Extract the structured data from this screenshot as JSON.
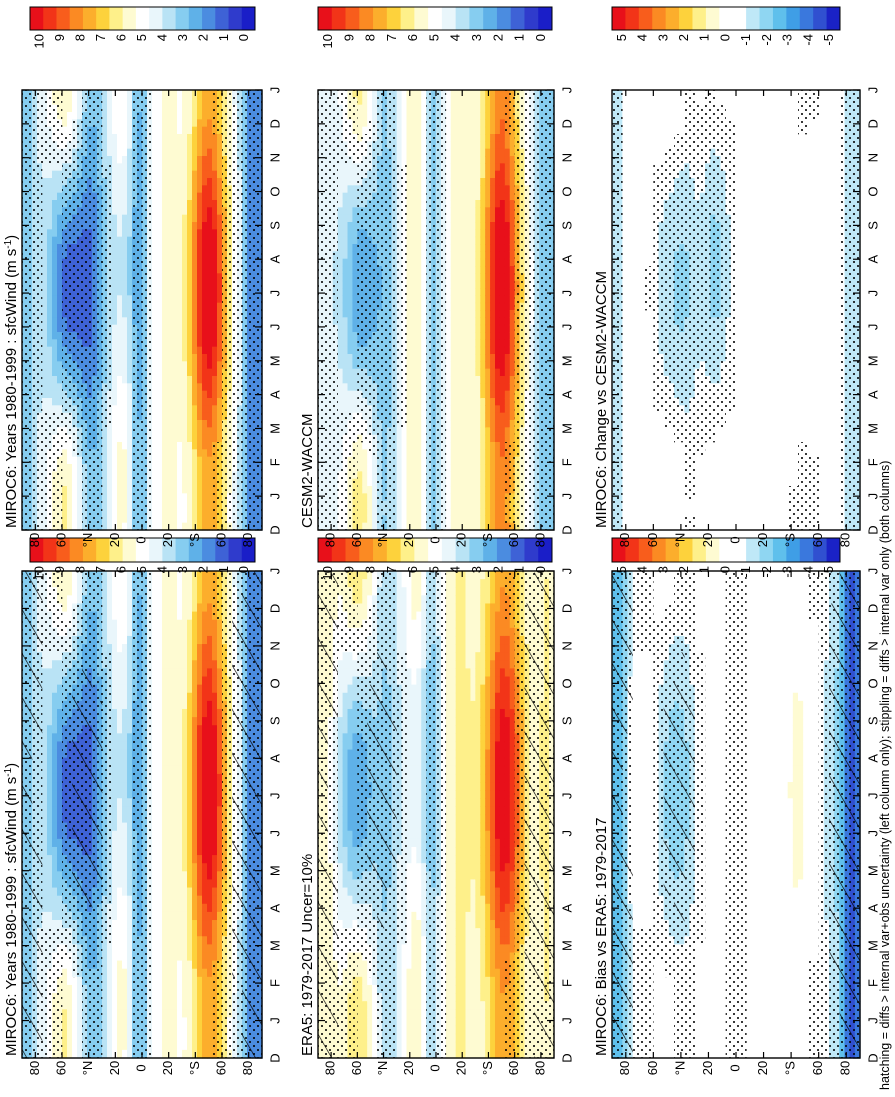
{
  "footer_note": "hatching = diffs > internal var+obs uncertainty (left column only); stippling = diffs > internal var only (both columns)",
  "colors": {
    "abs_scale": [
      "#e8101a",
      "#f23418",
      "#f85d1c",
      "#fb8a23",
      "#fcae2c",
      "#fdd23c",
      "#fef08a",
      "#fefbd2",
      "#ffffff",
      "#e9f6fb",
      "#b9e3f5",
      "#86cdf0",
      "#5fb1e8",
      "#4b8ce0",
      "#3e62d6",
      "#2f3bcc",
      "#1a1ec8"
    ],
    "diff_scale": [
      "#e8101a",
      "#f23418",
      "#f85d1c",
      "#fb8a23",
      "#fcae2c",
      "#fdd23c",
      "#fef08a",
      "#fefbd2",
      "#ffffff",
      "#ffffff",
      "#bfe8f7",
      "#8fd6f2",
      "#5fc0ec",
      "#3f9ee6",
      "#3a78dd",
      "#3050d0",
      "#1a22c6"
    ]
  },
  "chart_data": [
    {
      "type": "heatmap",
      "title": "MIROC6: Years 1980-1999 : sfcWind (m s",
      "title_sup": "-1",
      "title_end": ")",
      "xlabel": "",
      "x_ticks": [
        "D",
        "J",
        "F",
        "M",
        "A",
        "M",
        "J",
        "J",
        "A",
        "S",
        "O",
        "N",
        "D",
        "J"
      ],
      "y_ticks": [
        "80",
        "60",
        "°N",
        "20",
        "0",
        "20",
        "°S",
        "60",
        "80"
      ],
      "ylim": [
        -90,
        90
      ],
      "colorbar_ticks": [
        "10",
        "9",
        "8",
        "7",
        "6",
        "5",
        "4",
        "3",
        "2",
        "1",
        "0"
      ],
      "scale": "abs",
      "field": "model",
      "hatching": true,
      "stippling": true
    },
    {
      "type": "heatmap",
      "title": "MIROC6: Years 1980-1999 : sfcWind (m s",
      "title_sup": "-1",
      "title_end": ")",
      "x_ticks": [
        "D",
        "J",
        "F",
        "M",
        "A",
        "M",
        "J",
        "J",
        "A",
        "S",
        "O",
        "N",
        "D",
        "J"
      ],
      "y_ticks": [
        "80",
        "60",
        "°N",
        "20",
        "0",
        "20",
        "°S",
        "60",
        "80"
      ],
      "ylim": [
        -90,
        90
      ],
      "colorbar_ticks": [
        "10",
        "9",
        "8",
        "7",
        "6",
        "5",
        "4",
        "3",
        "2",
        "1",
        "0"
      ],
      "scale": "abs",
      "field": "model",
      "hatching": false,
      "stippling": true
    },
    {
      "type": "heatmap",
      "title": "ERA5: 1979-2017 Uncer=10%",
      "x_ticks": [
        "D",
        "J",
        "F",
        "M",
        "A",
        "M",
        "J",
        "J",
        "A",
        "S",
        "O",
        "N",
        "D",
        "J"
      ],
      "y_ticks": [
        "80",
        "60",
        "°N",
        "20",
        "0",
        "20",
        "°S",
        "60",
        "80"
      ],
      "ylim": [
        -90,
        90
      ],
      "colorbar_ticks": [
        "10",
        "9",
        "8",
        "7",
        "6",
        "5",
        "4",
        "3",
        "2",
        "1",
        "0"
      ],
      "scale": "abs",
      "field": "obs",
      "hatching": true,
      "stippling": true
    },
    {
      "type": "heatmap",
      "title": "CESM2-WACCM",
      "x_ticks": [
        "D",
        "J",
        "F",
        "M",
        "A",
        "M",
        "J",
        "J",
        "A",
        "S",
        "O",
        "N",
        "D",
        "J"
      ],
      "y_ticks": [
        "80",
        "60",
        "°N",
        "20",
        "0",
        "20",
        "°S",
        "60",
        "80"
      ],
      "ylim": [
        -90,
        90
      ],
      "colorbar_ticks": [
        "10",
        "9",
        "8",
        "7",
        "6",
        "5",
        "4",
        "3",
        "2",
        "1",
        "0"
      ],
      "scale": "abs",
      "field": "cesm",
      "hatching": false,
      "stippling": true
    },
    {
      "type": "heatmap",
      "title": "MIROC6: Bias vs ERA5: 1979-2017",
      "x_ticks": [
        "D",
        "J",
        "F",
        "M",
        "A",
        "M",
        "J",
        "J",
        "A",
        "S",
        "O",
        "N",
        "D",
        "J"
      ],
      "y_ticks": [
        "80",
        "60",
        "°N",
        "20",
        "0",
        "20",
        "°S",
        "60",
        "80"
      ],
      "ylim": [
        -90,
        90
      ],
      "colorbar_ticks": [
        "5",
        "4",
        "3",
        "2",
        "1",
        "0",
        "-1",
        "-2",
        "-3",
        "-4",
        "-5"
      ],
      "scale": "diff",
      "field": "bias",
      "hatching": true,
      "stippling": true
    },
    {
      "type": "heatmap",
      "title": "MIROC6: Change vs CESM2-WACCM",
      "x_ticks": [
        "D",
        "J",
        "F",
        "M",
        "A",
        "M",
        "J",
        "J",
        "A",
        "S",
        "O",
        "N",
        "D",
        "J"
      ],
      "y_ticks": [
        "80",
        "60",
        "°N",
        "20",
        "0",
        "20",
        "°S",
        "60",
        "80"
      ],
      "ylim": [
        -90,
        90
      ],
      "colorbar_ticks": [
        "5",
        "4",
        "3",
        "2",
        "1",
        "0",
        "-1",
        "-2",
        "-3",
        "-4",
        "-5"
      ],
      "scale": "diff",
      "field": "change",
      "hatching": false,
      "stippling": true
    }
  ]
}
